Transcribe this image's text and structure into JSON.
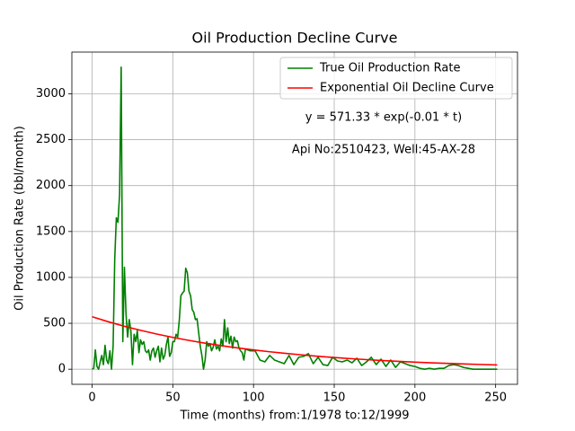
{
  "chart_data": {
    "type": "line",
    "title": "Oil Production Decline Curve",
    "xlabel": "Time (months) from:1/1978 to:12/1999",
    "ylabel": "Oil Production Rate (bbl/month)",
    "annotations": [
      "y = 571.33 * exp(-0.01 * t)",
      "Api No:2510423, Well:45-AX-28"
    ],
    "xlim": [
      -12.55,
      263.55
    ],
    "ylim": [
      -164.5,
      3454.5
    ],
    "xticks": [
      0,
      50,
      100,
      150,
      200,
      250
    ],
    "yticks": [
      0,
      500,
      1000,
      1500,
      2000,
      2500,
      3000
    ],
    "grid": true,
    "legend": "upper right",
    "series": [
      {
        "name": "True Oil Production Rate",
        "color": "#008000",
        "x": [
          0,
          1,
          2,
          3,
          4,
          5,
          6,
          7,
          8,
          9,
          10,
          11,
          12,
          13,
          14,
          15,
          16,
          17,
          18,
          19,
          20,
          21,
          22,
          23,
          24,
          25,
          26,
          27,
          28,
          29,
          30,
          31,
          32,
          33,
          34,
          35,
          36,
          37,
          38,
          39,
          40,
          41,
          42,
          43,
          44,
          45,
          46,
          47,
          48,
          49,
          50,
          51,
          52,
          53,
          54,
          55,
          56,
          57,
          58,
          59,
          60,
          61,
          62,
          63,
          64,
          65,
          66,
          67,
          68,
          69,
          70,
          71,
          72,
          73,
          74,
          75,
          76,
          77,
          78,
          79,
          80,
          81,
          82,
          83,
          84,
          85,
          86,
          87,
          88,
          89,
          90,
          91,
          92,
          93,
          94,
          95,
          98,
          101,
          104,
          107,
          110,
          113,
          116,
          119,
          122,
          125,
          128,
          131,
          134,
          137,
          140,
          143,
          146,
          149,
          152,
          155,
          158,
          161,
          164,
          167,
          170,
          173,
          176,
          179,
          182,
          185,
          188,
          191,
          194,
          197,
          200,
          203,
          206,
          209,
          212,
          215,
          218,
          221,
          224,
          227,
          230,
          233,
          236,
          239,
          242,
          245,
          248,
          251
        ],
        "values": [
          0,
          10,
          210,
          30,
          0,
          80,
          150,
          50,
          260,
          100,
          60,
          200,
          0,
          250,
          1200,
          1650,
          1600,
          1900,
          3290,
          300,
          1110,
          600,
          350,
          540,
          420,
          50,
          380,
          300,
          420,
          180,
          320,
          270,
          300,
          200,
          180,
          210,
          100,
          200,
          230,
          130,
          200,
          250,
          80,
          230,
          110,
          150,
          270,
          350,
          140,
          180,
          300,
          300,
          380,
          350,
          530,
          800,
          830,
          850,
          1100,
          1050,
          850,
          800,
          650,
          620,
          540,
          550,
          400,
          250,
          150,
          0,
          100,
          300,
          250,
          280,
          200,
          240,
          320,
          220,
          250,
          200,
          330,
          250,
          540,
          300,
          450,
          280,
          360,
          230,
          350,
          300,
          310,
          230,
          200,
          180,
          100,
          220,
          200,
          200,
          100,
          80,
          150,
          100,
          80,
          60,
          150,
          50,
          130,
          140,
          170,
          60,
          130,
          50,
          40,
          130,
          90,
          80,
          100,
          70,
          120,
          40,
          80,
          130,
          50,
          110,
          30,
          100,
          20,
          80,
          60,
          40,
          30,
          10,
          0,
          10,
          0,
          10,
          10,
          40,
          50,
          40,
          20,
          10,
          0,
          0,
          0,
          0,
          0,
          0
        ]
      },
      {
        "name": "Exponential Oil Decline Curve",
        "color": "#ff0000",
        "x": [
          0,
          10,
          20,
          30,
          40,
          50,
          60,
          70,
          80,
          90,
          100,
          110,
          120,
          130,
          140,
          150,
          160,
          170,
          180,
          190,
          200,
          210,
          220,
          230,
          240,
          251
        ],
        "values": [
          571.3,
          517.0,
          467.8,
          423.3,
          383.0,
          346.5,
          313.5,
          283.7,
          256.7,
          232.3,
          210.2,
          190.2,
          172.1,
          155.7,
          140.9,
          127.5,
          115.4,
          104.4,
          94.5,
          85.5,
          77.4,
          70.0,
          63.3,
          57.3,
          51.9,
          46.5
        ]
      }
    ]
  }
}
